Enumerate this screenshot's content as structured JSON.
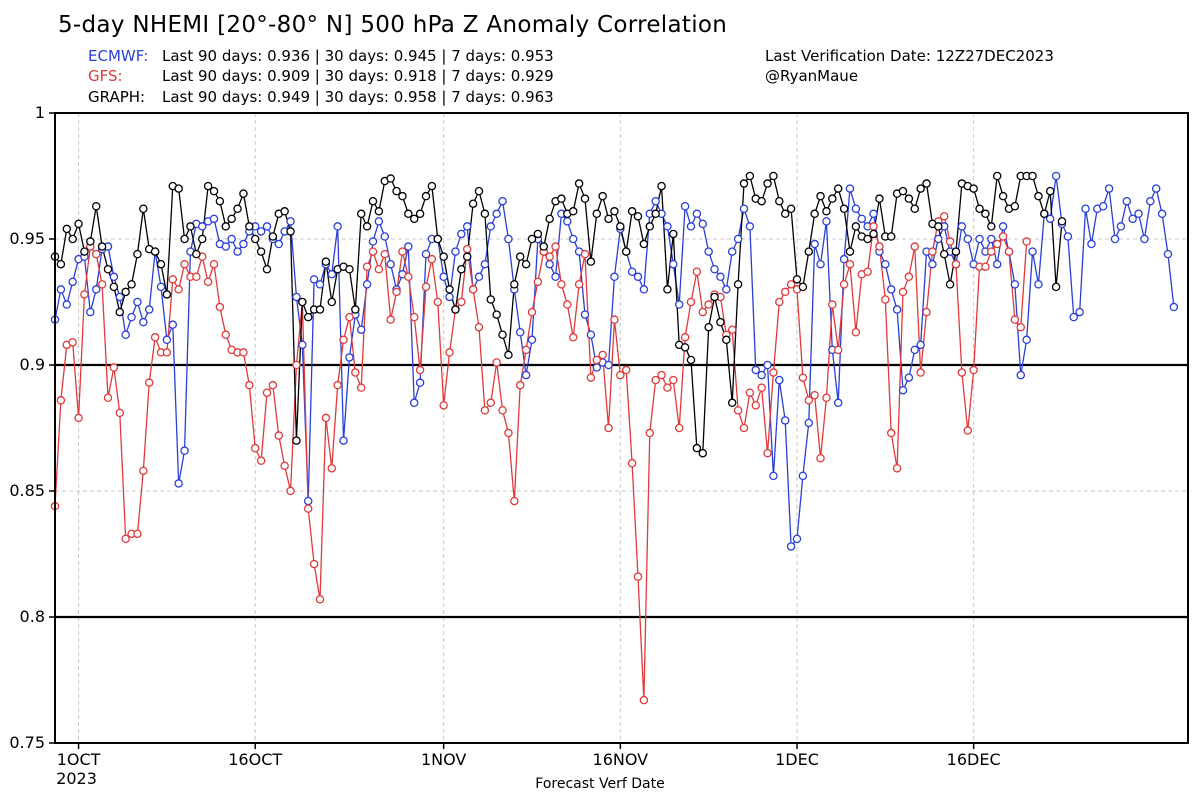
{
  "header": {
    "title": "5-day NHEMI [20°-80° N] 500 hPa Z Anomaly Correlation",
    "verification": "Last Verification Date: 12Z27DEC2023",
    "author": "@RyanMaue"
  },
  "stats": [
    {
      "label": "ECMWF:",
      "text": "Last 90 days: 0.936 | 30 days: 0.945 | 7 days: 0.953",
      "color": "#2a3fd6"
    },
    {
      "label": "GFS:",
      "text": "Last 90 days: 0.909 | 30 days: 0.918 | 7 days: 0.929",
      "color": "#e03a3a"
    },
    {
      "label": "GRAPH:",
      "text": "Last 90 days: 0.949 | 30 days: 0.958 | 7 days: 0.963",
      "color": "#000000"
    }
  ],
  "chart_data": {
    "type": "line",
    "xlabel": "Forecast Verf Date",
    "ylabel": "",
    "ylim": [
      0.75,
      1.0
    ],
    "x_start": "2023-09-29",
    "x_step_days": 0.5,
    "y_ticks": [
      0.75,
      0.8,
      0.85,
      0.9,
      0.95,
      1
    ],
    "y_tick_labels": [
      "0.75",
      "0.8",
      "0.85",
      "0.9",
      "0.95",
      "1"
    ],
    "x_ticks": [
      {
        "label": "1OCT",
        "sublabel": "2023",
        "date": "2023-10-01"
      },
      {
        "label": "16OCT",
        "sublabel": "",
        "date": "2023-10-16"
      },
      {
        "label": "1NOV",
        "sublabel": "",
        "date": "2023-11-01"
      },
      {
        "label": "16NOV",
        "sublabel": "",
        "date": "2023-11-16"
      },
      {
        "label": "1DEC",
        "sublabel": "",
        "date": "2023-12-01"
      },
      {
        "label": "16DEC",
        "sublabel": "",
        "date": "2023-12-16"
      }
    ],
    "reference_lines": [
      0.9,
      0.8
    ],
    "grid": true,
    "series": [
      {
        "name": "ECMWF",
        "color": "#2a3fd6",
        "values": [
          0.918,
          0.93,
          0.924,
          0.933,
          0.942,
          0.943,
          0.921,
          0.93,
          0.946,
          0.947,
          0.935,
          0.927,
          0.912,
          0.919,
          0.925,
          0.917,
          0.922,
          0.945,
          0.931,
          0.91,
          0.916,
          0.853,
          0.866,
          0.945,
          0.956,
          0.955,
          0.957,
          0.958,
          0.948,
          0.947,
          0.95,
          0.945,
          0.948,
          0.953,
          0.955,
          0.953,
          0.955,
          0.95,
          0.948,
          0.953,
          0.957,
          0.927,
          0.908,
          0.846,
          0.934,
          0.932,
          0.94,
          0.936,
          0.955,
          0.87,
          0.903,
          0.92,
          0.914,
          0.932,
          0.949,
          0.957,
          0.951,
          0.94,
          0.93,
          0.936,
          0.947,
          0.885,
          0.893,
          0.944,
          0.95,
          0.95,
          0.935,
          0.927,
          0.945,
          0.952,
          0.955,
          0.93,
          0.935,
          0.94,
          0.955,
          0.96,
          0.965,
          0.95,
          0.93,
          0.913,
          0.896,
          0.91,
          0.95,
          0.945,
          0.94,
          0.935,
          0.96,
          0.957,
          0.95,
          0.945,
          0.92,
          0.912,
          0.899,
          0.901,
          0.9,
          0.935,
          0.954,
          0.945,
          0.937,
          0.935,
          0.93,
          0.96,
          0.965,
          0.96,
          0.955,
          0.94,
          0.924,
          0.963,
          0.955,
          0.96,
          0.956,
          0.945,
          0.938,
          0.935,
          0.93,
          0.945,
          0.95,
          0.962,
          0.955,
          0.898,
          0.896,
          0.9,
          0.856,
          0.894,
          0.878,
          0.828,
          0.831,
          0.856,
          0.877,
          0.948,
          0.94,
          0.957,
          0.906,
          0.885,
          0.942,
          0.97,
          0.962,
          0.958,
          0.955,
          0.96,
          0.945,
          0.94,
          0.93,
          0.922,
          0.89,
          0.895,
          0.906,
          0.908,
          0.945,
          0.94,
          0.95,
          0.955,
          0.945,
          0.94,
          0.955,
          0.95,
          0.94,
          0.95,
          0.945,
          0.95,
          0.94,
          0.955,
          0.945,
          0.932,
          0.896,
          0.91,
          0.945,
          0.932,
          0.96,
          0.958,
          0.975,
          0.956,
          0.951,
          0.919,
          0.921,
          0.962,
          0.948,
          0.962,
          0.963,
          0.97,
          0.95,
          0.955,
          0.965,
          0.958,
          0.96,
          0.95,
          0.965,
          0.97,
          0.96,
          0.944,
          0.923
        ]
      },
      {
        "name": "GFS",
        "color": "#e03a3a",
        "values": [
          0.844,
          0.886,
          0.908,
          0.909,
          0.879,
          0.928,
          0.947,
          0.944,
          0.932,
          0.887,
          0.899,
          0.881,
          0.831,
          0.833,
          0.833,
          0.858,
          0.893,
          0.911,
          0.905,
          0.905,
          0.934,
          0.93,
          0.94,
          0.935,
          0.935,
          0.943,
          0.933,
          0.94,
          0.923,
          0.912,
          0.906,
          0.905,
          0.905,
          0.892,
          0.867,
          0.862,
          0.889,
          0.892,
          0.872,
          0.86,
          0.85,
          0.9,
          0.925,
          0.843,
          0.821,
          0.807,
          0.879,
          0.859,
          0.892,
          0.91,
          0.919,
          0.897,
          0.891,
          0.939,
          0.945,
          0.938,
          0.944,
          0.918,
          0.929,
          0.945,
          0.935,
          0.919,
          0.898,
          0.931,
          0.942,
          0.925,
          0.884,
          0.905,
          0.922,
          0.925,
          0.946,
          0.93,
          0.915,
          0.882,
          0.885,
          0.901,
          0.882,
          0.873,
          0.846,
          0.892,
          0.906,
          0.921,
          0.933,
          0.945,
          0.943,
          0.947,
          0.932,
          0.924,
          0.911,
          0.932,
          0.944,
          0.895,
          0.902,
          0.904,
          0.875,
          0.918,
          0.896,
          0.898,
          0.861,
          0.816,
          0.767,
          0.873,
          0.894,
          0.896,
          0.891,
          0.894,
          0.875,
          0.911,
          0.925,
          0.937,
          0.921,
          0.924,
          0.928,
          0.927,
          0.912,
          0.914,
          0.882,
          0.875,
          0.889,
          0.884,
          0.891,
          0.865,
          0.897,
          0.925,
          0.929,
          0.932,
          0.93,
          0.895,
          0.886,
          0.888,
          0.863,
          0.887,
          0.924,
          0.906,
          0.932,
          0.94,
          0.913,
          0.936,
          0.937,
          0.955,
          0.947,
          0.926,
          0.873,
          0.859,
          0.929,
          0.935,
          0.947,
          0.897,
          0.921,
          0.945,
          0.957,
          0.959,
          0.949,
          0.94,
          0.897,
          0.874,
          0.898,
          0.939,
          0.939,
          0.945,
          0.948,
          0.951,
          0.945,
          0.918,
          0.915,
          0.949
        ]
      },
      {
        "name": "GRAPH",
        "color": "#000000",
        "values": [
          0.943,
          0.94,
          0.954,
          0.95,
          0.956,
          0.945,
          0.949,
          0.963,
          0.947,
          0.938,
          0.931,
          0.921,
          0.929,
          0.932,
          0.944,
          0.962,
          0.946,
          0.945,
          0.94,
          0.928,
          0.971,
          0.97,
          0.95,
          0.955,
          0.944,
          0.95,
          0.971,
          0.969,
          0.965,
          0.955,
          0.958,
          0.962,
          0.968,
          0.955,
          0.95,
          0.945,
          0.938,
          0.951,
          0.96,
          0.961,
          0.953,
          0.87,
          0.925,
          0.919,
          0.922,
          0.922,
          0.941,
          0.925,
          0.938,
          0.939,
          0.938,
          0.922,
          0.96,
          0.955,
          0.965,
          0.961,
          0.973,
          0.974,
          0.969,
          0.967,
          0.96,
          0.958,
          0.96,
          0.967,
          0.971,
          0.95,
          0.943,
          0.93,
          0.922,
          0.938,
          0.943,
          0.964,
          0.969,
          0.96,
          0.926,
          0.92,
          0.912,
          0.904,
          0.932,
          0.943,
          0.94,
          0.95,
          0.952,
          0.947,
          0.958,
          0.965,
          0.966,
          0.96,
          0.961,
          0.972,
          0.966,
          0.941,
          0.96,
          0.967,
          0.958,
          0.961,
          0.955,
          0.945,
          0.961,
          0.959,
          0.948,
          0.955,
          0.96,
          0.971,
          0.93,
          0.952,
          0.908,
          0.907,
          0.902,
          0.867,
          0.865,
          0.915,
          0.927,
          0.917,
          0.91,
          0.885,
          0.932,
          0.972,
          0.975,
          0.966,
          0.965,
          0.972,
          0.975,
          0.965,
          0.96,
          0.962,
          0.934,
          0.931,
          0.945,
          0.96,
          0.967,
          0.961,
          0.966,
          0.97,
          0.962,
          0.945,
          0.955,
          0.951,
          0.95,
          0.952,
          0.966,
          0.951,
          0.951,
          0.968,
          0.969,
          0.966,
          0.962,
          0.97,
          0.972,
          0.956,
          0.955,
          0.944,
          0.932,
          0.945,
          0.972,
          0.971,
          0.97,
          0.962,
          0.96,
          0.955,
          0.975,
          0.967,
          0.962,
          0.963,
          0.975,
          0.975,
          0.975,
          0.967,
          0.96,
          0.969,
          0.931,
          0.957
        ]
      }
    ]
  }
}
